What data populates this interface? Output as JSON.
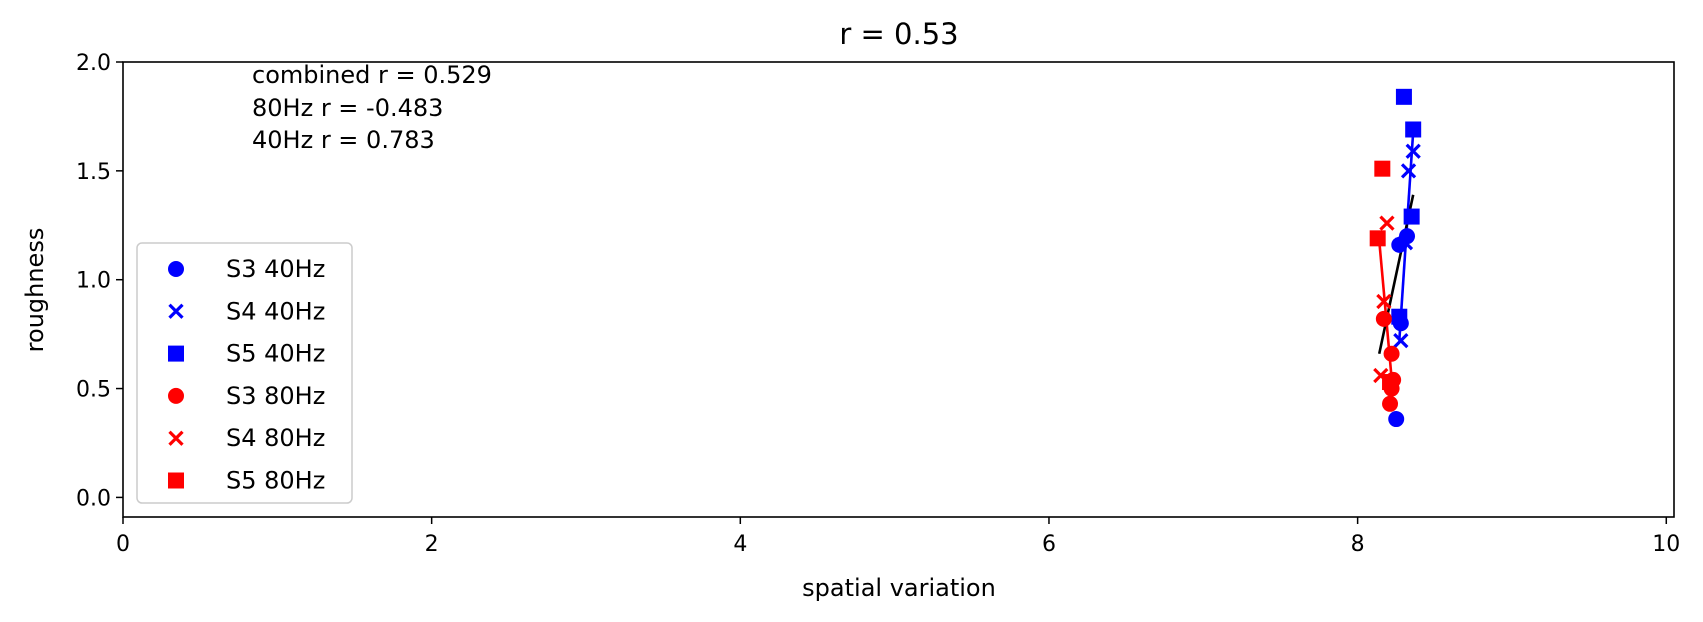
{
  "chart_data": {
    "type": "scatter",
    "title": "r = 0.53",
    "xlabel": "spatial variation",
    "ylabel": "roughness",
    "xlim": [
      0,
      10.05
    ],
    "ylim": [
      -0.09,
      2.0
    ],
    "xticks": [
      0,
      2,
      4,
      6,
      8,
      10
    ],
    "xtick_labels": [
      "0",
      "2",
      "4",
      "6",
      "8",
      "10"
    ],
    "yticks": [
      0.0,
      0.5,
      1.0,
      1.5,
      2.0
    ],
    "ytick_labels": [
      "0.0",
      "0.5",
      "1.0",
      "1.5",
      "2.0"
    ],
    "grid": false,
    "legend_position": "center-left",
    "annotations": [
      "combined r = 0.529",
      "80Hz r = -0.483",
      "40Hz r = 0.783"
    ],
    "series": [
      {
        "name": "S3 40Hz",
        "marker": "circle",
        "color": "#0000ff",
        "points": [
          [
            8.25,
            0.36
          ],
          [
            8.28,
            0.8
          ],
          [
            8.27,
            1.16
          ],
          [
            8.32,
            1.2
          ]
        ]
      },
      {
        "name": "S4 40Hz",
        "marker": "x",
        "color": "#0000ff",
        "points": [
          [
            8.28,
            0.72
          ],
          [
            8.31,
            1.17
          ],
          [
            8.33,
            1.5
          ],
          [
            8.36,
            1.59
          ]
        ]
      },
      {
        "name": "S5 40Hz",
        "marker": "square",
        "color": "#0000ff",
        "points": [
          [
            8.27,
            0.83
          ],
          [
            8.35,
            1.29
          ],
          [
            8.36,
            1.69
          ],
          [
            8.3,
            1.84
          ]
        ]
      },
      {
        "name": "S3 80Hz",
        "marker": "circle",
        "color": "#ff0000",
        "points": [
          [
            8.21,
            0.43
          ],
          [
            8.22,
            0.5
          ],
          [
            8.23,
            0.54
          ],
          [
            8.22,
            0.66
          ],
          [
            8.17,
            0.82
          ]
        ]
      },
      {
        "name": "S4 80Hz",
        "marker": "x",
        "color": "#ff0000",
        "points": [
          [
            8.15,
            0.56
          ],
          [
            8.17,
            0.9
          ],
          [
            8.19,
            1.26
          ]
        ]
      },
      {
        "name": "S5 80Hz",
        "marker": "square",
        "color": "#ff0000",
        "points": [
          [
            8.21,
            0.53
          ],
          [
            8.13,
            1.19
          ],
          [
            8.16,
            1.51
          ]
        ]
      }
    ],
    "fit_lines": [
      {
        "color": "#0000ff",
        "points": [
          [
            8.27,
            0.72
          ],
          [
            8.36,
            1.68
          ]
        ]
      },
      {
        "color": "#ff0000",
        "points": [
          [
            8.14,
            1.18
          ],
          [
            8.23,
            0.47
          ]
        ]
      },
      {
        "color": "#000000",
        "points": [
          [
            8.14,
            0.66
          ],
          [
            8.36,
            1.39
          ]
        ]
      }
    ]
  }
}
